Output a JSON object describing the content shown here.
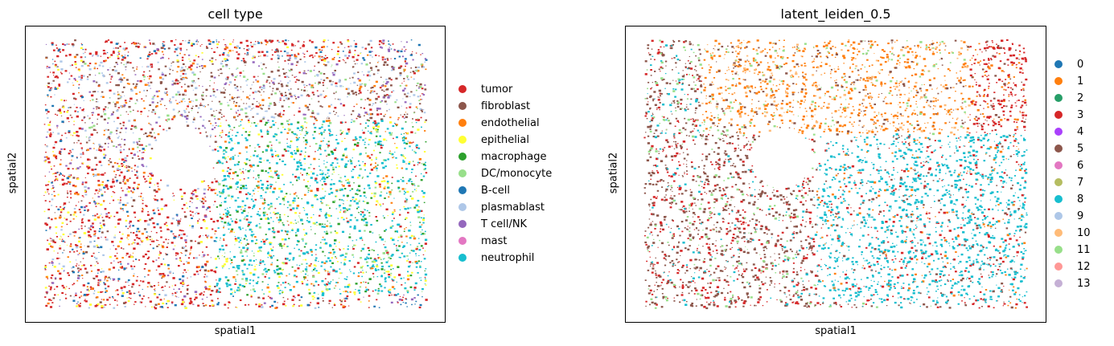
{
  "chart_data": [
    {
      "type": "scatter",
      "title": "cell type",
      "xlabel": "spatial1",
      "ylabel": "spatial2",
      "xticks": false,
      "yticks": false,
      "grid": false,
      "legend_position": "right, outside plot",
      "categories": [
        {
          "name": "tumor",
          "color": "#d62728"
        },
        {
          "name": "fibroblast",
          "color": "#8c564b"
        },
        {
          "name": "endothelial",
          "color": "#ff7f0e"
        },
        {
          "name": "epithelial",
          "color": "#ffff33"
        },
        {
          "name": "macrophage",
          "color": "#2ca02c"
        },
        {
          "name": "DC/monocyte",
          "color": "#98df8a"
        },
        {
          "name": "B-cell",
          "color": "#1f77b4"
        },
        {
          "name": "plasmablast",
          "color": "#aec7e8"
        },
        {
          "name": "T cell/NK",
          "color": "#9467bd"
        },
        {
          "name": "mast",
          "color": "#e377c2"
        },
        {
          "name": "neutrophil",
          "color": "#17becf"
        }
      ]
    },
    {
      "type": "scatter",
      "title": "latent_leiden_0.5",
      "xlabel": "spatial1",
      "ylabel": "spatial2",
      "xticks": false,
      "yticks": false,
      "grid": false,
      "legend_position": "right, outside plot",
      "categories": [
        {
          "name": "0",
          "color": "#1f77b4"
        },
        {
          "name": "1",
          "color": "#ff7f0e"
        },
        {
          "name": "2",
          "color": "#279e68"
        },
        {
          "name": "3",
          "color": "#d62728"
        },
        {
          "name": "4",
          "color": "#aa40fc"
        },
        {
          "name": "5",
          "color": "#8c564b"
        },
        {
          "name": "6",
          "color": "#e377c2"
        },
        {
          "name": "7",
          "color": "#b5bd61"
        },
        {
          "name": "8",
          "color": "#17becf"
        },
        {
          "name": "9",
          "color": "#aec7e8"
        },
        {
          "name": "10",
          "color": "#ffbb78"
        },
        {
          "name": "11",
          "color": "#98df8a"
        },
        {
          "name": "12",
          "color": "#ff9896"
        },
        {
          "name": "13",
          "color": "#c5b0d5"
        }
      ]
    }
  ]
}
